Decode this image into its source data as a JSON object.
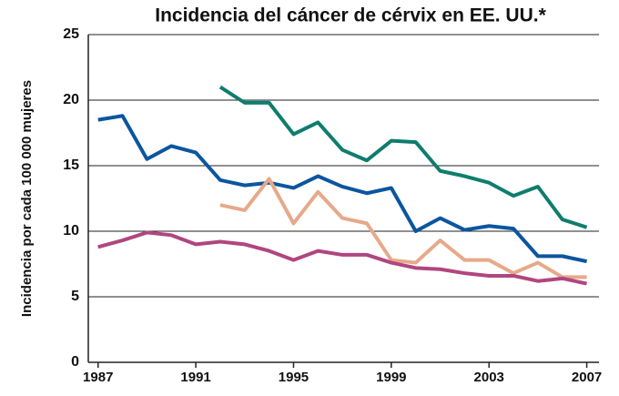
{
  "chart_data": {
    "type": "line",
    "title": "Incidencia del cáncer de cérvix en EE. UU.*",
    "ylabel": "Incidencia por cada 100 000 mujeres",
    "x": [
      1987,
      1988,
      1989,
      1990,
      1991,
      1992,
      1993,
      1994,
      1995,
      1996,
      1997,
      1998,
      1999,
      2000,
      2001,
      2002,
      2003,
      2004,
      2005,
      2006,
      2007
    ],
    "series": [
      {
        "color": "#0e7d6e",
        "values": [
          null,
          null,
          null,
          null,
          null,
          21.0,
          19.8,
          19.8,
          17.4,
          18.3,
          16.2,
          15.4,
          16.9,
          16.8,
          14.6,
          14.2,
          13.7,
          12.7,
          13.4,
          10.9,
          10.3
        ]
      },
      {
        "color": "#0b55a0",
        "values": [
          18.5,
          18.8,
          15.5,
          16.5,
          16.0,
          13.9,
          13.5,
          13.7,
          13.3,
          14.2,
          13.4,
          12.9,
          13.3,
          10.0,
          11.0,
          10.1,
          10.4,
          10.2,
          8.1,
          8.1,
          7.7
        ]
      },
      {
        "color": "#e6a98a",
        "values": [
          null,
          null,
          null,
          null,
          null,
          12.0,
          11.6,
          14.0,
          10.6,
          13.0,
          11.0,
          10.6,
          7.8,
          7.6,
          9.3,
          7.8,
          7.8,
          6.8,
          7.6,
          6.5,
          6.5
        ]
      },
      {
        "color": "#b0467f",
        "values": [
          8.8,
          9.3,
          9.9,
          9.7,
          9.0,
          9.2,
          9.0,
          8.5,
          7.8,
          8.5,
          8.2,
          8.2,
          7.6,
          7.2,
          7.1,
          6.8,
          6.6,
          6.6,
          6.2,
          6.4,
          6.0
        ]
      }
    ],
    "xlim": [
      1986.6,
      2007.5
    ],
    "xticks": [
      1987,
      1991,
      1995,
      1999,
      2003,
      2007
    ],
    "ylim": [
      0,
      25
    ],
    "yticks": [
      0,
      5,
      10,
      15,
      20,
      25
    ],
    "grid": true
  }
}
